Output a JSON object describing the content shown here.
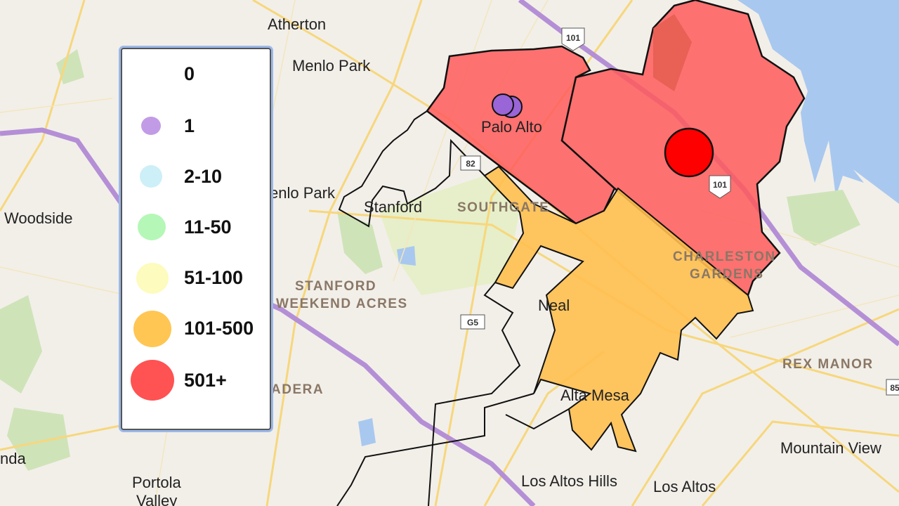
{
  "map": {
    "place_labels": [
      "Atherton",
      "Menlo Park",
      "Palo Alto",
      "enlo Park",
      "Stanford",
      "Woodside",
      "Neal",
      "Alta Mesa",
      "Mountain View",
      "Los Altos Hills",
      "Los Altos",
      "Portola",
      "Valley",
      "nda"
    ],
    "district_labels": [
      "SOUTHGATE",
      "STANFORD",
      "WEEKEND ACRES",
      "CHARLESTON",
      "GARDENS",
      "REX MANOR",
      "ADERA"
    ],
    "shields": [
      "101",
      "101",
      "82",
      "G5",
      "85"
    ],
    "colors": {
      "land": "#f2efe9",
      "water": "#a9c8ef",
      "highway": "#b48fd6",
      "road": "#f7d77c",
      "red_area": "#ff5a5a",
      "orange_area": "#ffbf4f",
      "purple_marker": "#9a65d6"
    }
  },
  "legend": {
    "items": [
      {
        "label": "0",
        "color": "none"
      },
      {
        "label": "1",
        "color": "#c29be6"
      },
      {
        "label": "2-10",
        "color": "#cdeff7"
      },
      {
        "label": "11-50",
        "color": "#b5f7b7"
      },
      {
        "label": "51-100",
        "color": "#fdfbbd"
      },
      {
        "label": "101-500",
        "color": "#ffc653"
      },
      {
        "label": "501+",
        "color": "#ff5252"
      }
    ]
  }
}
